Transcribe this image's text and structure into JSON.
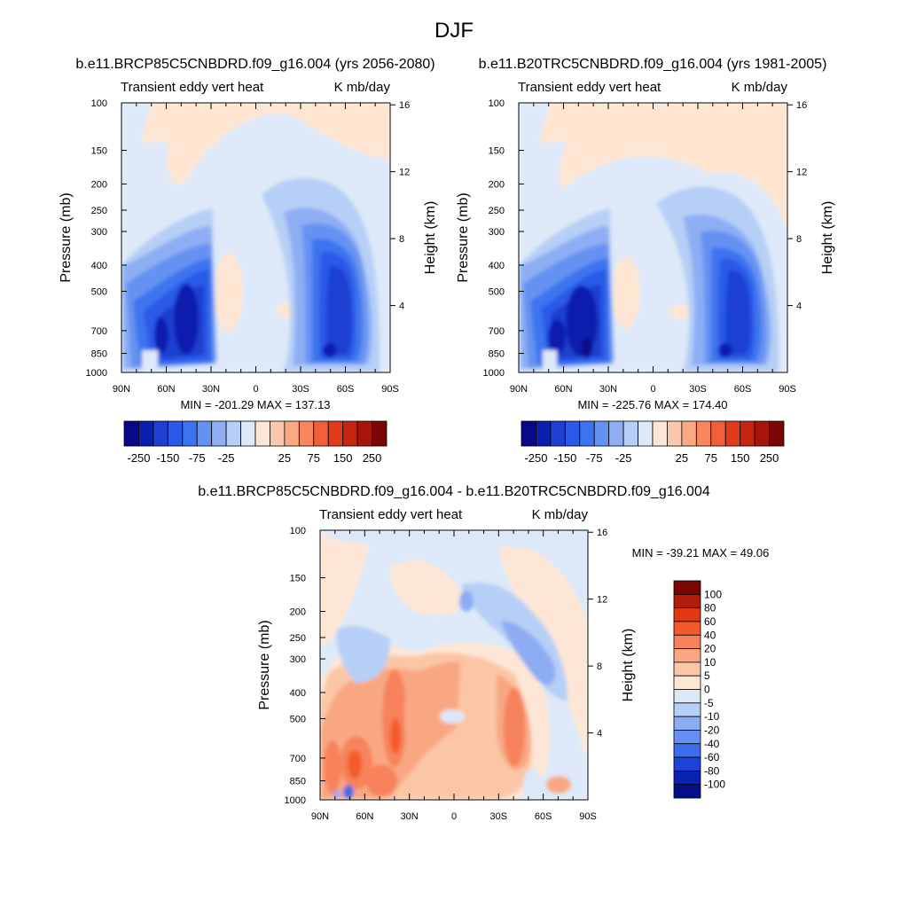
{
  "page_title": "DJF",
  "contour_levels_main": [
    -250,
    -225,
    -200,
    -175,
    -150,
    -125,
    -100,
    -75,
    -50,
    -25,
    0,
    25,
    50,
    75,
    100,
    125,
    150,
    175,
    200,
    225,
    250
  ],
  "colorbar_main": {
    "labels": [
      "-250",
      "-150",
      "-75",
      "-25",
      "25",
      "75",
      "150",
      "250"
    ],
    "colors": [
      "#08088c",
      "#0a1fad",
      "#1e3fd2",
      "#2c5ae8",
      "#3d74ee",
      "#6592f2",
      "#8eaef4",
      "#b6cff6",
      "#dde9f8",
      "#fde5d2",
      "#fcc8ab",
      "#fba885",
      "#f7865f",
      "#f06038",
      "#e23b1b",
      "#c82510",
      "#a8150a",
      "#7a0603"
    ]
  },
  "colorbar_diff": {
    "labels": [
      "100",
      "80",
      "60",
      "40",
      "20",
      "10",
      "5",
      "0",
      "-5",
      "-10",
      "-20",
      "-40",
      "-60",
      "-80",
      "-100"
    ],
    "colors": [
      "#7a0603",
      "#b11d0b",
      "#e1380f",
      "#f45a2b",
      "#f7825c",
      "#f9a783",
      "#fbc6a6",
      "#fde6d6",
      "#dbe8f8",
      "#b6cff6",
      "#8cacf4",
      "#6590f2",
      "#3b6cec",
      "#1d44d8",
      "#0a22b0",
      "#050f8a"
    ]
  },
  "chart_data": [
    {
      "type": "heatmap",
      "title": "b.e11.BRCP85C5CNBDRD.f09_g16.004 (yrs 2056-2080)",
      "left_label": "Transient eddy vert heat",
      "right_label": "K mb/day",
      "xlabel": "",
      "ylabel": "Pressure (mb)",
      "ylabel_right": "Height (km)",
      "x_ticks": [
        "90N",
        "60N",
        "30N",
        "0",
        "30S",
        "60S",
        "90S"
      ],
      "x_range": [
        90,
        -90
      ],
      "y_ticks": [
        "100",
        "150",
        "200",
        "250",
        "300",
        "400",
        "500",
        "700",
        "850",
        "1000"
      ],
      "y_range": [
        1000,
        100
      ],
      "y_scale": "log",
      "height_ticks": [
        "4",
        "8",
        "12",
        "16"
      ],
      "stats_text": "MIN = -201.29  MAX = 137.13",
      "min": -201.29,
      "max": 137.13
    },
    {
      "type": "heatmap",
      "title": "b.e11.B20TRC5CNBDRD.f09_g16.004 (yrs 1981-2005)",
      "left_label": "Transient eddy vert heat",
      "right_label": "K mb/day",
      "xlabel": "",
      "ylabel": "Pressure (mb)",
      "ylabel_right": "Height (km)",
      "x_ticks": [
        "90N",
        "60N",
        "30N",
        "0",
        "30S",
        "60S",
        "90S"
      ],
      "x_range": [
        90,
        -90
      ],
      "y_ticks": [
        "100",
        "150",
        "200",
        "250",
        "300",
        "400",
        "500",
        "700",
        "850",
        "1000"
      ],
      "y_range": [
        1000,
        100
      ],
      "y_scale": "log",
      "height_ticks": [
        "4",
        "8",
        "12",
        "16"
      ],
      "stats_text": "MIN = -225.76  MAX = 174.40",
      "min": -225.76,
      "max": 174.4
    },
    {
      "type": "heatmap",
      "title": "b.e11.BRCP85C5CNBDRD.f09_g16.004 - b.e11.B20TRC5CNBDRD.f09_g16.004",
      "left_label": "Transient eddy vert heat",
      "right_label": "K mb/day",
      "xlabel": "",
      "ylabel": "Pressure (mb)",
      "ylabel_right": "Height (km)",
      "x_ticks": [
        "90N",
        "60N",
        "30N",
        "0",
        "30S",
        "60S",
        "90S"
      ],
      "x_range": [
        90,
        -90
      ],
      "y_ticks": [
        "100",
        "150",
        "200",
        "250",
        "300",
        "400",
        "500",
        "700",
        "850",
        "1000"
      ],
      "y_range": [
        1000,
        100
      ],
      "y_scale": "log",
      "height_ticks": [
        "4",
        "8",
        "12",
        "16"
      ],
      "stats_text": "MIN = -39.21  MAX =  49.06",
      "min": -39.21,
      "max": 49.06
    }
  ]
}
